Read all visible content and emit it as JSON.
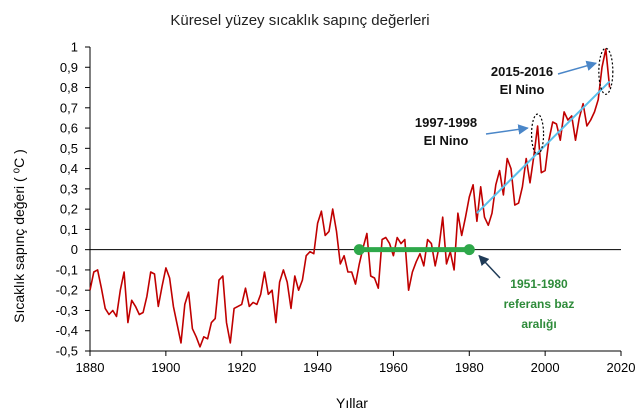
{
  "chart_data": {
    "type": "line",
    "title": "Küresel yüzey sıcaklık sapınç değerleri",
    "xlabel": "Yıllar",
    "ylabel": "Sıcaklık sapınç değeri ( ⁰C )",
    "xlim": [
      1880,
      2020
    ],
    "ylim": [
      -0.5,
      1.0
    ],
    "x_ticks": [
      "1880",
      "1900",
      "1920",
      "1940",
      "1960",
      "1980",
      "2000",
      "2020"
    ],
    "y_ticks": [
      "1",
      "0,9",
      "0,8",
      "0,7",
      "0,6",
      "0,5",
      "0,4",
      "0,3",
      "0,2",
      "0,1",
      "0",
      "-0,1",
      "-0,2",
      "-0,3",
      "-0,4",
      "-0,5"
    ],
    "grid": false,
    "zero_line": true,
    "series": [
      {
        "color": "#c00000",
        "x": [
          1880,
          1881,
          1882,
          1883,
          1884,
          1885,
          1886,
          1887,
          1888,
          1889,
          1890,
          1891,
          1892,
          1893,
          1894,
          1895,
          1896,
          1897,
          1898,
          1899,
          1900,
          1901,
          1902,
          1903,
          1904,
          1905,
          1906,
          1907,
          1908,
          1909,
          1910,
          1911,
          1912,
          1913,
          1914,
          1915,
          1916,
          1917,
          1918,
          1919,
          1920,
          1921,
          1922,
          1923,
          1924,
          1925,
          1926,
          1927,
          1928,
          1929,
          1930,
          1931,
          1932,
          1933,
          1934,
          1935,
          1936,
          1937,
          1938,
          1939,
          1940,
          1941,
          1942,
          1943,
          1944,
          1945,
          1946,
          1947,
          1948,
          1949,
          1950,
          1951,
          1952,
          1953,
          1954,
          1955,
          1956,
          1957,
          1958,
          1959,
          1960,
          1961,
          1962,
          1963,
          1964,
          1965,
          1966,
          1967,
          1968,
          1969,
          1970,
          1971,
          1972,
          1973,
          1974,
          1975,
          1976,
          1977,
          1978,
          1979,
          1980,
          1981,
          1982,
          1983,
          1984,
          1985,
          1986,
          1987,
          1988,
          1989,
          1990,
          1991,
          1992,
          1993,
          1994,
          1995,
          1996,
          1997,
          1998,
          1999,
          2000,
          2001,
          2002,
          2003,
          2004,
          2005,
          2006,
          2007,
          2008,
          2009,
          2010,
          2011,
          2012,
          2013,
          2014,
          2015,
          2016,
          2017
        ],
        "values": [
          -0.2,
          -0.11,
          -0.1,
          -0.19,
          -0.29,
          -0.32,
          -0.3,
          -0.33,
          -0.2,
          -0.11,
          -0.36,
          -0.25,
          -0.28,
          -0.32,
          -0.31,
          -0.23,
          -0.11,
          -0.12,
          -0.28,
          -0.18,
          -0.09,
          -0.14,
          -0.28,
          -0.37,
          -0.46,
          -0.27,
          -0.21,
          -0.39,
          -0.43,
          -0.48,
          -0.43,
          -0.44,
          -0.36,
          -0.34,
          -0.15,
          -0.13,
          -0.36,
          -0.46,
          -0.29,
          -0.28,
          -0.27,
          -0.19,
          -0.28,
          -0.26,
          -0.27,
          -0.22,
          -0.11,
          -0.22,
          -0.2,
          -0.36,
          -0.16,
          -0.1,
          -0.16,
          -0.29,
          -0.13,
          -0.2,
          -0.15,
          -0.03,
          -0.01,
          -0.02,
          0.13,
          0.19,
          0.07,
          0.09,
          0.2,
          0.09,
          -0.07,
          -0.03,
          -0.11,
          -0.11,
          -0.17,
          -0.07,
          0.01,
          0.08,
          -0.13,
          -0.14,
          -0.19,
          0.05,
          0.06,
          0.03,
          -0.03,
          0.06,
          0.03,
          0.05,
          -0.2,
          -0.11,
          -0.06,
          -0.02,
          -0.08,
          0.05,
          0.03,
          -0.08,
          0.01,
          0.16,
          -0.07,
          -0.01,
          -0.1,
          0.18,
          0.07,
          0.16,
          0.26,
          0.32,
          0.14,
          0.31,
          0.16,
          0.12,
          0.18,
          0.32,
          0.39,
          0.27,
          0.45,
          0.4,
          0.22,
          0.23,
          0.31,
          0.45,
          0.33,
          0.46,
          0.61,
          0.38,
          0.39,
          0.54,
          0.63,
          0.62,
          0.54,
          0.68,
          0.64,
          0.66,
          0.54,
          0.65,
          0.72,
          0.61,
          0.64,
          0.68,
          0.74,
          0.9,
          0.99,
          0.8
        ]
      }
    ],
    "trend": {
      "color": "#5bc0eb",
      "from": [
        1982,
        0.18
      ],
      "to": [
        2017,
        0.83
      ]
    },
    "baseline": {
      "color": "#2ea84a",
      "from": 1951,
      "to": 1980,
      "value": 0.0
    },
    "annotations": [
      {
        "lines": [
          "2015-2016",
          "El Nino"
        ],
        "target_year": 2016,
        "target_value": 0.9
      },
      {
        "lines": [
          "1997-1998",
          "El Nino"
        ],
        "target_year": 1998,
        "target_value": 0.56
      },
      {
        "lines": [
          "1951-1980",
          "referans baz",
          "aralığı"
        ],
        "target_year": 1981,
        "target_value": -0.02
      }
    ]
  }
}
